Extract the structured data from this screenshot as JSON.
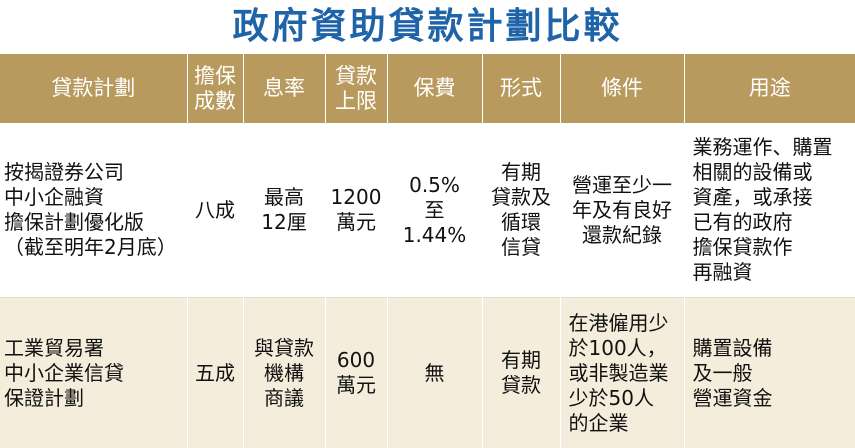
{
  "title": "政府資助貸款計劃比較",
  "headers": [
    "貸款計劃",
    "擔保\n成數",
    "息率",
    "貸款\n上限",
    "保費",
    "形式",
    "條件",
    "用途"
  ],
  "rows": [
    {
      "plan": "按揭證券公司\n中小企融資\n擔保計劃優化版\n（截至明年2月底）",
      "guarantee": "八成",
      "rate": "最高\n12厘",
      "limit": "1200\n萬元",
      "fee": "0.5%\n至\n1.44%",
      "form": "有期\n貸款及\n循環\n信貸",
      "condition": "營運至少一\n年及有良好\n還款紀錄",
      "use": "業務運作、購置\n相關的設備或\n資產，或承接\n已有的政府\n擔保貸款作\n再融資"
    },
    {
      "plan": "工業貿易署\n中小企業信貸\n保證計劃",
      "guarantee": "五成",
      "rate": "與貸款\n機構\n商議",
      "limit": "600\n萬元",
      "fee": "無",
      "form": "有期\n貸款",
      "condition": "在港僱用少\n於100人，\n或非製造業\n少於50人\n的企業",
      "use": "購置設備\n及一般\n營運資金"
    }
  ]
}
